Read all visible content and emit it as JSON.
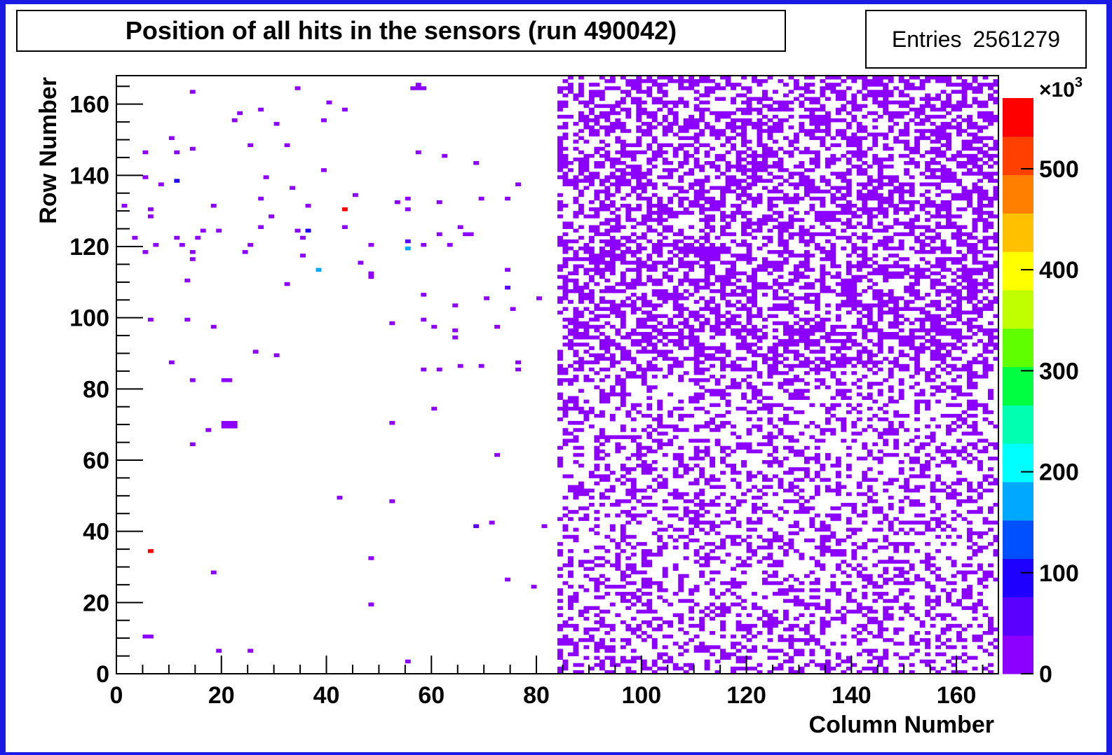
{
  "chart_data": {
    "type": "heatmap",
    "title": "Position of all hits in the sensors (run 490042)",
    "stats": {
      "label": "Entries",
      "value": "2561279"
    },
    "xlabel": "Column Number",
    "ylabel": "Row Number",
    "xlim": [
      0,
      168
    ],
    "ylim": [
      0,
      168
    ],
    "x_ticks": [
      "0",
      "20",
      "40",
      "60",
      "80",
      "100",
      "120",
      "140",
      "160"
    ],
    "y_ticks": [
      "0",
      "20",
      "40",
      "60",
      "80",
      "100",
      "120",
      "140",
      "160"
    ],
    "colorbar": {
      "multiplier": "×10",
      "exponent": "3",
      "range": [
        0,
        570
      ],
      "ticks": [
        "0",
        "100",
        "200",
        "300",
        "400",
        "500"
      ],
      "palette": [
        "#8c00ff",
        "#5a00ff",
        "#1e00ff",
        "#0050ff",
        "#00a8ff",
        "#00ffff",
        "#00ffb0",
        "#00ff40",
        "#60ff00",
        "#c0ff00",
        "#ffff00",
        "#ffc000",
        "#ff8000",
        "#ff4000",
        "#ff0000"
      ]
    },
    "region_fill": {
      "col_range": [
        84,
        168
      ],
      "row_range": [
        0,
        168
      ],
      "value": 10,
      "dense_rows": [
        85,
        168
      ],
      "dense_occupancy": 0.5,
      "sparse_occupancy": 0.32
    },
    "hot_cells": [
      {
        "x": 43,
        "y": 130,
        "value": 560
      },
      {
        "x": 6,
        "y": 34,
        "value": 560
      },
      {
        "x": 38,
        "y": 113,
        "value": 180
      },
      {
        "x": 55,
        "y": 119,
        "value": 170
      },
      {
        "x": 11,
        "y": 138,
        "value": 80
      },
      {
        "x": 55,
        "y": 121,
        "value": 60
      },
      {
        "x": 36,
        "y": 124,
        "value": 110
      },
      {
        "x": 74,
        "y": 108,
        "value": 60
      },
      {
        "x": 68,
        "y": 41,
        "value": 60
      }
    ],
    "sparse_cells": [
      [
        20,
        70
      ],
      [
        21,
        70
      ],
      [
        22,
        70
      ],
      [
        20,
        69
      ],
      [
        21,
        69
      ],
      [
        22,
        69
      ],
      [
        57,
        164
      ],
      [
        56,
        164
      ],
      [
        58,
        164
      ],
      [
        57,
        165
      ],
      [
        14,
        163
      ],
      [
        34,
        164
      ],
      [
        40,
        160
      ],
      [
        27,
        158
      ],
      [
        43,
        158
      ],
      [
        23,
        157
      ],
      [
        30,
        154
      ],
      [
        22,
        155
      ],
      [
        39,
        155
      ],
      [
        10,
        150
      ],
      [
        32,
        148
      ],
      [
        25,
        148
      ],
      [
        14,
        147
      ],
      [
        5,
        146
      ],
      [
        11,
        146
      ],
      [
        57,
        146
      ],
      [
        62,
        145
      ],
      [
        68,
        143
      ],
      [
        5,
        139
      ],
      [
        28,
        139
      ],
      [
        39,
        141
      ],
      [
        33,
        136
      ],
      [
        8,
        137
      ],
      [
        76,
        137
      ],
      [
        45,
        134
      ],
      [
        53,
        132
      ],
      [
        55,
        133
      ],
      [
        27,
        133
      ],
      [
        61,
        132
      ],
      [
        69,
        133
      ],
      [
        74,
        133
      ],
      [
        1,
        131
      ],
      [
        36,
        131
      ],
      [
        6,
        130
      ],
      [
        18,
        131
      ],
      [
        55,
        130
      ],
      [
        6,
        128
      ],
      [
        29,
        128
      ],
      [
        65,
        125
      ],
      [
        43,
        125
      ],
      [
        27,
        125
      ],
      [
        34,
        124
      ],
      [
        16,
        124
      ],
      [
        3,
        122
      ],
      [
        11,
        122
      ],
      [
        15,
        122
      ],
      [
        19,
        124
      ],
      [
        61,
        123
      ],
      [
        66,
        123
      ],
      [
        67,
        123
      ],
      [
        12,
        120
      ],
      [
        7,
        120
      ],
      [
        48,
        120
      ],
      [
        25,
        120
      ],
      [
        35,
        122
      ],
      [
        63,
        120
      ],
      [
        58,
        120
      ],
      [
        5,
        118
      ],
      [
        14,
        118
      ],
      [
        24,
        118
      ],
      [
        35,
        117
      ],
      [
        14,
        116
      ],
      [
        46,
        115
      ],
      [
        48,
        112
      ],
      [
        74,
        113
      ],
      [
        48,
        111
      ],
      [
        13,
        110
      ],
      [
        32,
        109
      ],
      [
        58,
        106
      ],
      [
        70,
        105
      ],
      [
        80,
        105
      ],
      [
        64,
        103
      ],
      [
        75,
        102
      ],
      [
        6,
        99
      ],
      [
        13,
        99
      ],
      [
        58,
        99
      ],
      [
        18,
        97
      ],
      [
        52,
        98
      ],
      [
        60,
        97
      ],
      [
        64,
        96
      ],
      [
        72,
        97
      ],
      [
        64,
        94
      ],
      [
        26,
        90
      ],
      [
        30,
        89
      ],
      [
        10,
        87
      ],
      [
        61,
        85
      ],
      [
        58,
        85
      ],
      [
        65,
        86
      ],
      [
        69,
        86
      ],
      [
        76,
        85
      ],
      [
        76,
        87
      ],
      [
        14,
        82
      ],
      [
        20,
        82
      ],
      [
        21,
        82
      ],
      [
        60,
        74
      ],
      [
        52,
        70
      ],
      [
        17,
        68
      ],
      [
        14,
        64
      ],
      [
        72,
        61
      ],
      [
        42,
        49
      ],
      [
        52,
        48
      ],
      [
        71,
        42
      ],
      [
        81,
        41
      ],
      [
        48,
        32
      ],
      [
        18,
        28
      ],
      [
        74,
        26
      ],
      [
        79,
        24
      ],
      [
        48,
        19
      ],
      [
        5,
        10
      ],
      [
        6,
        10
      ],
      [
        19,
        6
      ],
      [
        25,
        6
      ],
      [
        55,
        3
      ]
    ]
  }
}
